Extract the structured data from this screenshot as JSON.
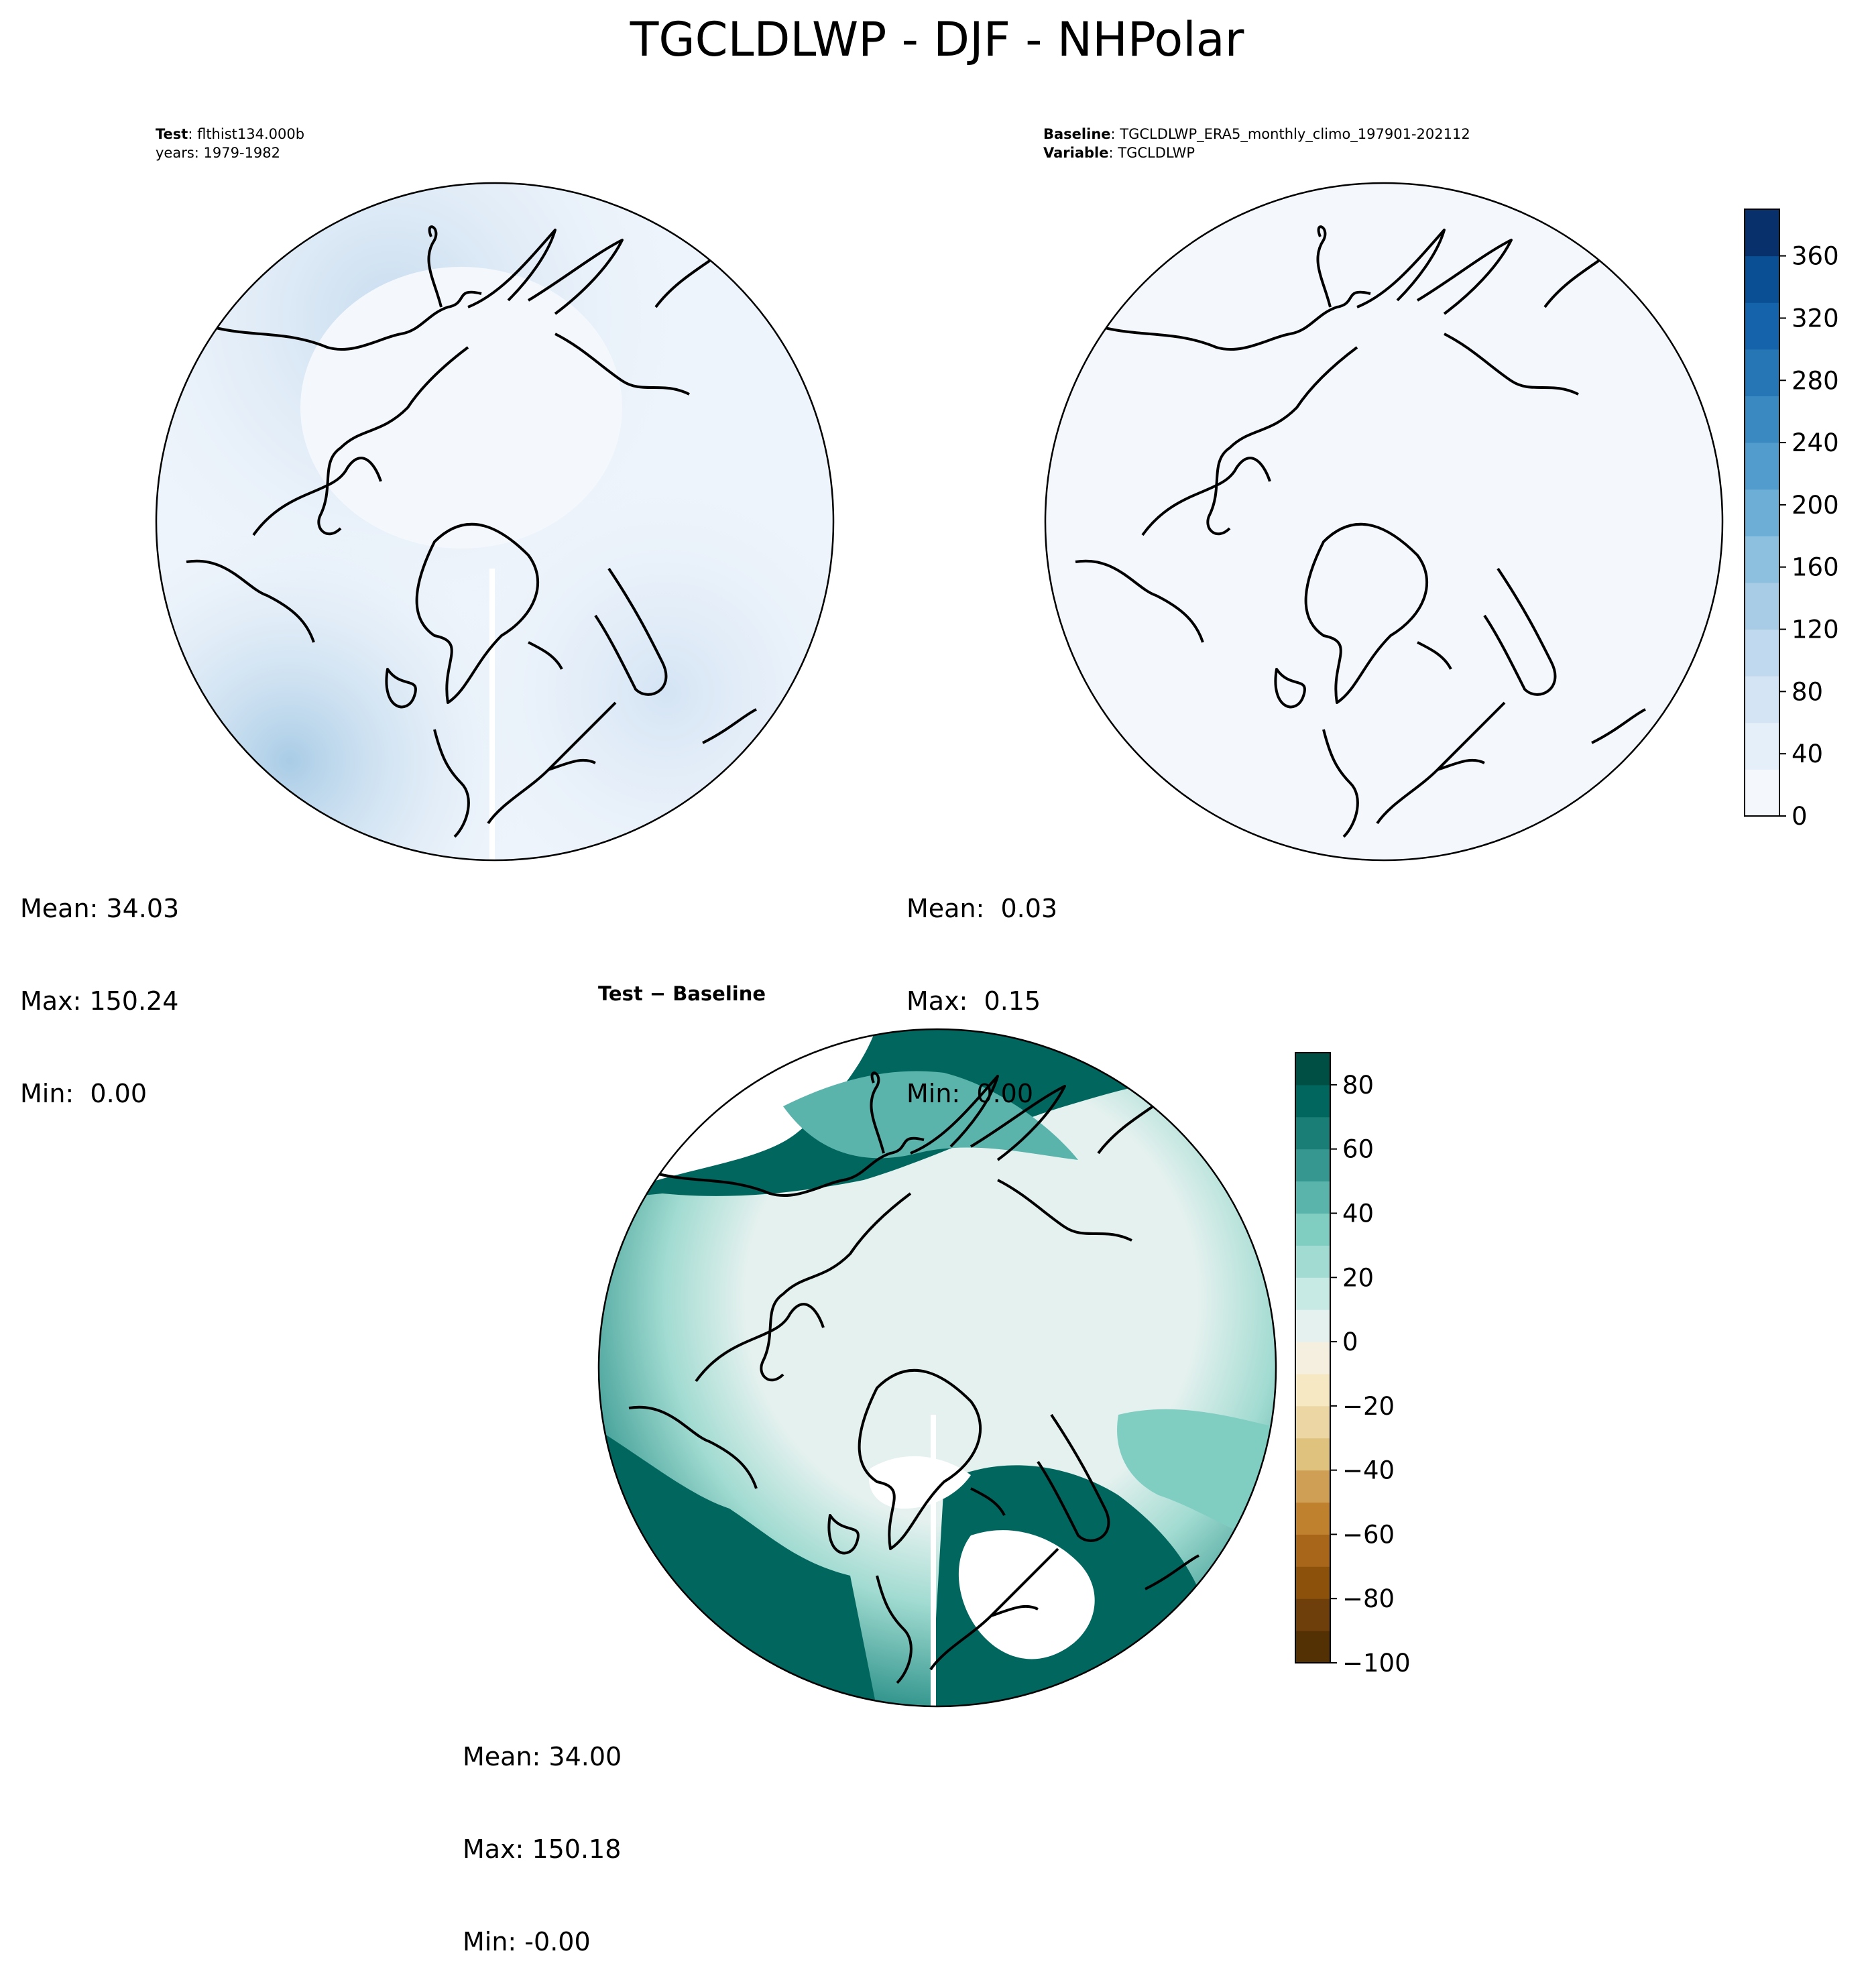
{
  "figure": {
    "title": "TGCLDLWP - DJF - NHPolar"
  },
  "panels": {
    "test": {
      "label_key": "Test",
      "label_value": "flthist134.000b",
      "line2": "years: 1979-1982",
      "mean": "Mean: 34.03",
      "max": "Max: 150.24",
      "min": "Min:  0.00"
    },
    "baseline": {
      "label_key": "Baseline",
      "label_value": "TGCLDLWP_ERA5_monthly_climo_197901-202112",
      "var_key": "Variable",
      "var_value": "TGCLDLWP",
      "mean": "Mean:  0.03",
      "max": "Max:  0.15",
      "min": "Min:  0.00"
    },
    "diff": {
      "title": "Test − Baseline",
      "mean": "Mean: 34.00",
      "max": "Max: 150.18",
      "min": "Min: -0.00"
    }
  },
  "colorbars": {
    "blues": {
      "ticks": [
        "0",
        "40",
        "80",
        "120",
        "160",
        "200",
        "240",
        "280",
        "320",
        "360"
      ],
      "range": [
        0,
        390
      ],
      "colors": [
        "#f4f8fd",
        "#e5eff9",
        "#d4e4f4",
        "#c1d9ee",
        "#a9cce6",
        "#8dbfdf",
        "#6caed6",
        "#519ccc",
        "#3a8ac1",
        "#2676b6",
        "#1563aa",
        "#0a4f94",
        "#08306b"
      ]
    },
    "brbg": {
      "ticks": [
        "80",
        "60",
        "40",
        "20",
        "0",
        "−20",
        "−40",
        "−60",
        "−80",
        "−100"
      ],
      "range": [
        -100,
        90
      ],
      "colors": [
        "#543005",
        "#6e3f0a",
        "#8c510a",
        "#a8661a",
        "#bf812d",
        "#cf9f55",
        "#dfc27d",
        "#ebd6a4",
        "#f6e8c3",
        "#f5efe0",
        "#e5f1ef",
        "#c7eae5",
        "#a1dbd1",
        "#80cdc1",
        "#5ab4ab",
        "#35978f",
        "#1b7e76",
        "#01665e",
        "#004f44"
      ]
    }
  },
  "colors": {
    "land_outline": "#000000",
    "test_field_light": "#eef4fb",
    "baseline_field": "#f4f8fd",
    "diff_field": "#e5f1ef"
  }
}
